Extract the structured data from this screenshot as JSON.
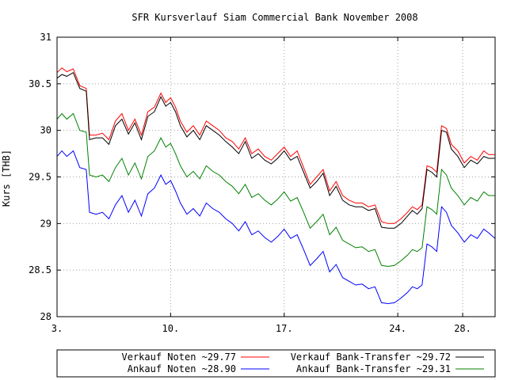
{
  "chart_data": {
    "type": "line",
    "title": "SFR Kursverlauf Siam Commercial Bank November 2008",
    "ylabel": "Kurs [THB]",
    "xlabel": "",
    "xlim": [
      3,
      30
    ],
    "ylim": [
      28,
      31
    ],
    "x_ticks": [
      {
        "x": 3,
        "label": "3."
      },
      {
        "x": 10,
        "label": "10."
      },
      {
        "x": 17,
        "label": "17."
      },
      {
        "x": 24,
        "label": "24."
      },
      {
        "x": 28,
        "label": "28."
      }
    ],
    "y_ticks": [
      {
        "y": 28,
        "label": "28"
      },
      {
        "y": 28.5,
        "label": "28.5"
      },
      {
        "y": 29,
        "label": "29"
      },
      {
        "y": 29.5,
        "label": "29.5"
      },
      {
        "y": 30,
        "label": "30"
      },
      {
        "y": 30.5,
        "label": "30.5"
      },
      {
        "y": 31,
        "label": "31"
      }
    ],
    "grid": true,
    "legend_position": "bottom",
    "series": [
      {
        "name": "Verkauf Noten ~29.77",
        "color": "#ff0000",
        "points": [
          [
            3.0,
            30.62
          ],
          [
            3.3,
            30.67
          ],
          [
            3.6,
            30.63
          ],
          [
            4.0,
            30.66
          ],
          [
            4.4,
            30.48
          ],
          [
            4.8,
            30.45
          ],
          [
            5.0,
            29.95
          ],
          [
            5.4,
            29.95
          ],
          [
            5.8,
            29.97
          ],
          [
            6.2,
            29.9
          ],
          [
            6.6,
            30.1
          ],
          [
            7.0,
            30.18
          ],
          [
            7.4,
            30.0
          ],
          [
            7.8,
            30.12
          ],
          [
            8.2,
            29.95
          ],
          [
            8.6,
            30.2
          ],
          [
            9.0,
            30.25
          ],
          [
            9.4,
            30.4
          ],
          [
            9.7,
            30.3
          ],
          [
            10.0,
            30.35
          ],
          [
            10.3,
            30.25
          ],
          [
            10.6,
            30.1
          ],
          [
            11.0,
            29.98
          ],
          [
            11.4,
            30.05
          ],
          [
            11.8,
            29.95
          ],
          [
            12.2,
            30.1
          ],
          [
            12.6,
            30.05
          ],
          [
            13.0,
            30.0
          ],
          [
            13.4,
            29.92
          ],
          [
            13.8,
            29.88
          ],
          [
            14.2,
            29.8
          ],
          [
            14.6,
            29.92
          ],
          [
            15.0,
            29.75
          ],
          [
            15.4,
            29.8
          ],
          [
            15.8,
            29.72
          ],
          [
            16.2,
            29.68
          ],
          [
            16.6,
            29.75
          ],
          [
            17.0,
            29.82
          ],
          [
            17.4,
            29.72
          ],
          [
            17.8,
            29.78
          ],
          [
            18.2,
            29.6
          ],
          [
            18.6,
            29.42
          ],
          [
            19.0,
            29.5
          ],
          [
            19.4,
            29.58
          ],
          [
            19.8,
            29.35
          ],
          [
            20.2,
            29.45
          ],
          [
            20.6,
            29.3
          ],
          [
            21.0,
            29.25
          ],
          [
            21.4,
            29.22
          ],
          [
            21.8,
            29.22
          ],
          [
            22.2,
            29.18
          ],
          [
            22.6,
            29.2
          ],
          [
            23.0,
            29.02
          ],
          [
            23.4,
            29.0
          ],
          [
            23.8,
            29.0
          ],
          [
            24.2,
            29.05
          ],
          [
            24.6,
            29.12
          ],
          [
            24.9,
            29.18
          ],
          [
            25.2,
            29.15
          ],
          [
            25.5,
            29.2
          ],
          [
            25.8,
            29.62
          ],
          [
            26.1,
            29.6
          ],
          [
            26.4,
            29.55
          ],
          [
            26.7,
            30.05
          ],
          [
            27.0,
            30.02
          ],
          [
            27.3,
            29.85
          ],
          [
            27.7,
            29.78
          ],
          [
            28.1,
            29.65
          ],
          [
            28.5,
            29.72
          ],
          [
            28.9,
            29.68
          ],
          [
            29.3,
            29.78
          ],
          [
            29.6,
            29.74
          ],
          [
            30.0,
            29.74
          ]
        ]
      },
      {
        "name": "Verkauf Bank-Transfer ~29.72",
        "color": "#000000",
        "points": [
          [
            3.0,
            30.56
          ],
          [
            3.3,
            30.6
          ],
          [
            3.6,
            30.58
          ],
          [
            4.0,
            30.62
          ],
          [
            4.4,
            30.45
          ],
          [
            4.8,
            30.42
          ],
          [
            5.0,
            29.9
          ],
          [
            5.4,
            29.92
          ],
          [
            5.8,
            29.92
          ],
          [
            6.2,
            29.85
          ],
          [
            6.6,
            30.05
          ],
          [
            7.0,
            30.12
          ],
          [
            7.4,
            29.96
          ],
          [
            7.8,
            30.08
          ],
          [
            8.2,
            29.9
          ],
          [
            8.6,
            30.15
          ],
          [
            9.0,
            30.2
          ],
          [
            9.4,
            30.36
          ],
          [
            9.7,
            30.26
          ],
          [
            10.0,
            30.3
          ],
          [
            10.3,
            30.2
          ],
          [
            10.6,
            30.05
          ],
          [
            11.0,
            29.93
          ],
          [
            11.4,
            30.0
          ],
          [
            11.8,
            29.9
          ],
          [
            12.2,
            30.05
          ],
          [
            12.6,
            30.0
          ],
          [
            13.0,
            29.95
          ],
          [
            13.4,
            29.88
          ],
          [
            13.8,
            29.82
          ],
          [
            14.2,
            29.75
          ],
          [
            14.6,
            29.88
          ],
          [
            15.0,
            29.7
          ],
          [
            15.4,
            29.75
          ],
          [
            15.8,
            29.68
          ],
          [
            16.2,
            29.64
          ],
          [
            16.6,
            29.7
          ],
          [
            17.0,
            29.78
          ],
          [
            17.4,
            29.68
          ],
          [
            17.8,
            29.72
          ],
          [
            18.2,
            29.55
          ],
          [
            18.6,
            29.38
          ],
          [
            19.0,
            29.45
          ],
          [
            19.4,
            29.54
          ],
          [
            19.8,
            29.3
          ],
          [
            20.2,
            29.4
          ],
          [
            20.6,
            29.25
          ],
          [
            21.0,
            29.2
          ],
          [
            21.4,
            29.18
          ],
          [
            21.8,
            29.18
          ],
          [
            22.2,
            29.14
          ],
          [
            22.6,
            29.16
          ],
          [
            23.0,
            28.96
          ],
          [
            23.4,
            28.95
          ],
          [
            23.8,
            28.95
          ],
          [
            24.2,
            29.0
          ],
          [
            24.6,
            29.08
          ],
          [
            24.9,
            29.14
          ],
          [
            25.2,
            29.1
          ],
          [
            25.5,
            29.16
          ],
          [
            25.8,
            29.58
          ],
          [
            26.1,
            29.55
          ],
          [
            26.4,
            29.5
          ],
          [
            26.7,
            30.0
          ],
          [
            27.0,
            29.98
          ],
          [
            27.3,
            29.8
          ],
          [
            27.7,
            29.72
          ],
          [
            28.1,
            29.6
          ],
          [
            28.5,
            29.68
          ],
          [
            28.9,
            29.64
          ],
          [
            29.3,
            29.72
          ],
          [
            29.6,
            29.7
          ],
          [
            30.0,
            29.7
          ]
        ]
      },
      {
        "name": "Ankauf Noten ~28.90",
        "color": "#0000ff",
        "points": [
          [
            3.0,
            29.72
          ],
          [
            3.3,
            29.78
          ],
          [
            3.6,
            29.72
          ],
          [
            4.0,
            29.78
          ],
          [
            4.4,
            29.6
          ],
          [
            4.8,
            29.58
          ],
          [
            5.0,
            29.12
          ],
          [
            5.4,
            29.1
          ],
          [
            5.8,
            29.12
          ],
          [
            6.2,
            29.05
          ],
          [
            6.6,
            29.2
          ],
          [
            7.0,
            29.3
          ],
          [
            7.4,
            29.12
          ],
          [
            7.8,
            29.25
          ],
          [
            8.2,
            29.08
          ],
          [
            8.6,
            29.32
          ],
          [
            9.0,
            29.38
          ],
          [
            9.4,
            29.52
          ],
          [
            9.7,
            29.42
          ],
          [
            10.0,
            29.46
          ],
          [
            10.3,
            29.35
          ],
          [
            10.6,
            29.22
          ],
          [
            11.0,
            29.1
          ],
          [
            11.4,
            29.16
          ],
          [
            11.8,
            29.08
          ],
          [
            12.2,
            29.22
          ],
          [
            12.6,
            29.16
          ],
          [
            13.0,
            29.12
          ],
          [
            13.4,
            29.05
          ],
          [
            13.8,
            29.0
          ],
          [
            14.2,
            28.92
          ],
          [
            14.6,
            29.02
          ],
          [
            15.0,
            28.88
          ],
          [
            15.4,
            28.92
          ],
          [
            15.8,
            28.85
          ],
          [
            16.2,
            28.8
          ],
          [
            16.6,
            28.86
          ],
          [
            17.0,
            28.94
          ],
          [
            17.4,
            28.84
          ],
          [
            17.8,
            28.88
          ],
          [
            18.2,
            28.72
          ],
          [
            18.6,
            28.55
          ],
          [
            19.0,
            28.62
          ],
          [
            19.4,
            28.7
          ],
          [
            19.8,
            28.48
          ],
          [
            20.2,
            28.56
          ],
          [
            20.6,
            28.42
          ],
          [
            21.0,
            28.38
          ],
          [
            21.4,
            28.34
          ],
          [
            21.8,
            28.35
          ],
          [
            22.2,
            28.3
          ],
          [
            22.6,
            28.32
          ],
          [
            23.0,
            28.15
          ],
          [
            23.4,
            28.14
          ],
          [
            23.8,
            28.15
          ],
          [
            24.2,
            28.2
          ],
          [
            24.6,
            28.26
          ],
          [
            24.9,
            28.32
          ],
          [
            25.2,
            28.3
          ],
          [
            25.5,
            28.34
          ],
          [
            25.8,
            28.78
          ],
          [
            26.1,
            28.75
          ],
          [
            26.4,
            28.7
          ],
          [
            26.7,
            29.18
          ],
          [
            27.0,
            29.12
          ],
          [
            27.3,
            28.98
          ],
          [
            27.7,
            28.9
          ],
          [
            28.1,
            28.8
          ],
          [
            28.5,
            28.88
          ],
          [
            28.9,
            28.84
          ],
          [
            29.3,
            28.94
          ],
          [
            29.6,
            28.9
          ],
          [
            30.0,
            28.84
          ]
        ]
      },
      {
        "name": "Ankauf Bank-Transfer ~29.31",
        "color": "#008000",
        "points": [
          [
            3.0,
            30.12
          ],
          [
            3.3,
            30.18
          ],
          [
            3.6,
            30.12
          ],
          [
            4.0,
            30.18
          ],
          [
            4.4,
            30.0
          ],
          [
            4.8,
            29.98
          ],
          [
            5.0,
            29.52
          ],
          [
            5.4,
            29.5
          ],
          [
            5.8,
            29.52
          ],
          [
            6.2,
            29.45
          ],
          [
            6.6,
            29.6
          ],
          [
            7.0,
            29.7
          ],
          [
            7.4,
            29.52
          ],
          [
            7.8,
            29.65
          ],
          [
            8.2,
            29.48
          ],
          [
            8.6,
            29.72
          ],
          [
            9.0,
            29.78
          ],
          [
            9.4,
            29.92
          ],
          [
            9.7,
            29.82
          ],
          [
            10.0,
            29.86
          ],
          [
            10.3,
            29.75
          ],
          [
            10.6,
            29.62
          ],
          [
            11.0,
            29.5
          ],
          [
            11.4,
            29.56
          ],
          [
            11.8,
            29.48
          ],
          [
            12.2,
            29.62
          ],
          [
            12.6,
            29.56
          ],
          [
            13.0,
            29.52
          ],
          [
            13.4,
            29.45
          ],
          [
            13.8,
            29.4
          ],
          [
            14.2,
            29.32
          ],
          [
            14.6,
            29.42
          ],
          [
            15.0,
            29.28
          ],
          [
            15.4,
            29.32
          ],
          [
            15.8,
            29.25
          ],
          [
            16.2,
            29.2
          ],
          [
            16.6,
            29.26
          ],
          [
            17.0,
            29.34
          ],
          [
            17.4,
            29.24
          ],
          [
            17.8,
            29.28
          ],
          [
            18.2,
            29.12
          ],
          [
            18.6,
            28.95
          ],
          [
            19.0,
            29.02
          ],
          [
            19.4,
            29.1
          ],
          [
            19.8,
            28.88
          ],
          [
            20.2,
            28.96
          ],
          [
            20.6,
            28.82
          ],
          [
            21.0,
            28.78
          ],
          [
            21.4,
            28.74
          ],
          [
            21.8,
            28.75
          ],
          [
            22.2,
            28.7
          ],
          [
            22.6,
            28.72
          ],
          [
            23.0,
            28.55
          ],
          [
            23.4,
            28.54
          ],
          [
            23.8,
            28.55
          ],
          [
            24.2,
            28.6
          ],
          [
            24.6,
            28.66
          ],
          [
            24.9,
            28.72
          ],
          [
            25.2,
            28.7
          ],
          [
            25.5,
            28.74
          ],
          [
            25.8,
            29.18
          ],
          [
            26.1,
            29.15
          ],
          [
            26.4,
            29.1
          ],
          [
            26.7,
            29.58
          ],
          [
            27.0,
            29.52
          ],
          [
            27.3,
            29.38
          ],
          [
            27.7,
            29.3
          ],
          [
            28.1,
            29.2
          ],
          [
            28.5,
            29.28
          ],
          [
            28.9,
            29.24
          ],
          [
            29.3,
            29.34
          ],
          [
            29.6,
            29.3
          ],
          [
            30.0,
            29.3
          ]
        ]
      }
    ]
  }
}
